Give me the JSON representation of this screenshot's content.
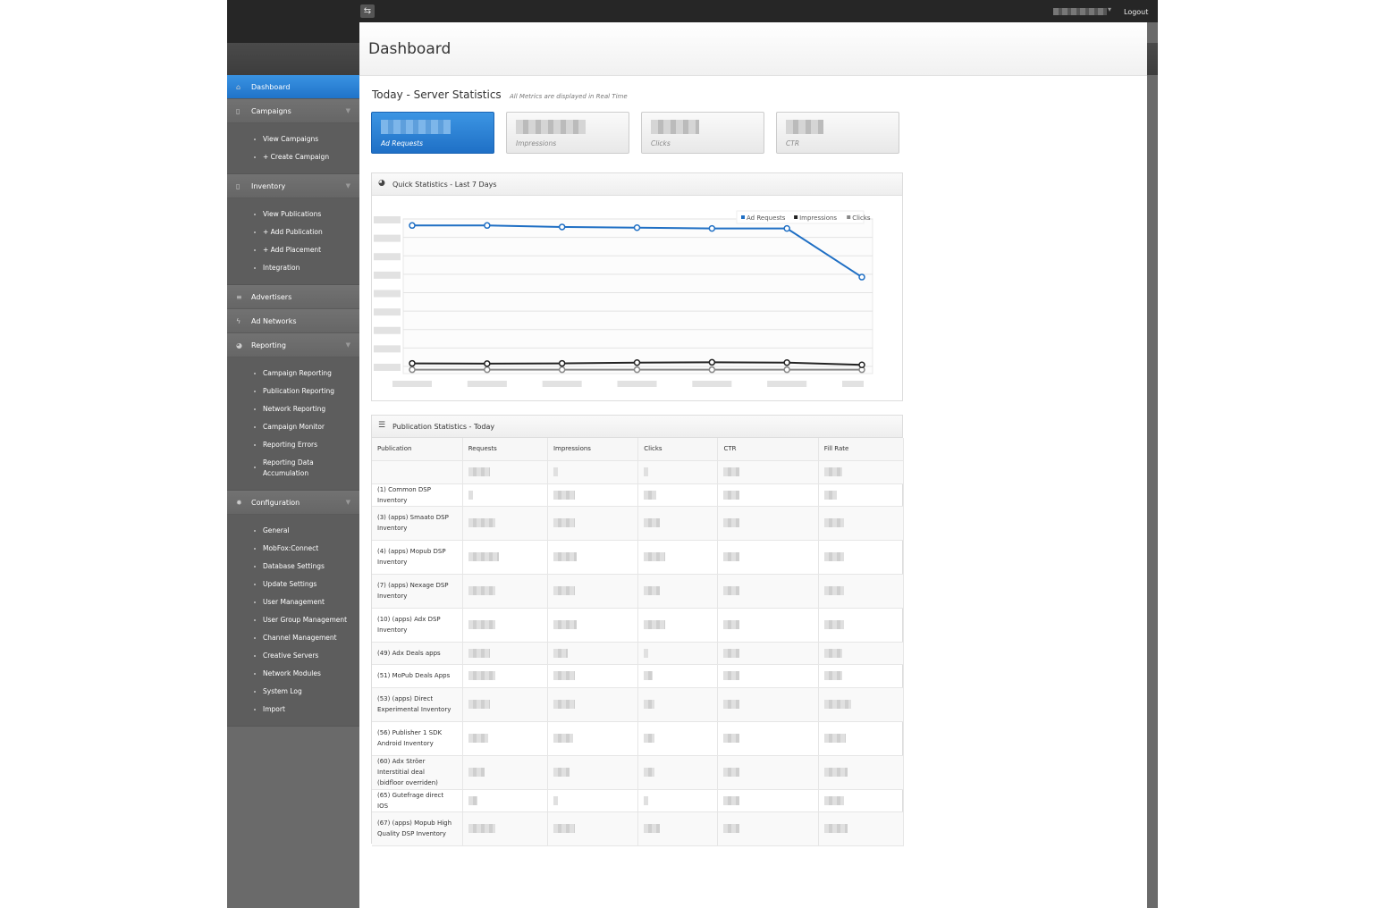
{
  "header": {
    "logout": "Logout",
    "page_title": "Dashboard"
  },
  "sidebar": {
    "dashboard": "Dashboard",
    "campaigns": {
      "label": "Campaigns",
      "items": [
        "View Campaigns",
        "+ Create Campaign"
      ]
    },
    "inventory": {
      "label": "Inventory",
      "items": [
        "View Publications",
        "+ Add Publication",
        "+ Add Placement",
        "Integration"
      ]
    },
    "advertisers": "Advertisers",
    "ad_networks": "Ad Networks",
    "reporting": {
      "label": "Reporting",
      "items": [
        "Campaign Reporting",
        "Publication Reporting",
        "Network Reporting",
        "Campaign Monitor",
        "Reporting Errors",
        "Reporting Data Accumulation"
      ]
    },
    "configuration": {
      "label": "Configuration",
      "items": [
        "General",
        "MobFox:Connect",
        "Database Settings",
        "Update Settings",
        "User Management",
        "User Group Management",
        "Channel Management",
        "Creative Servers",
        "Network Modules",
        "System Log",
        "Import"
      ]
    }
  },
  "server_stats": {
    "title": "Today - Server Statistics",
    "subtitle": "All Metrics are displayed in Real Time",
    "cards": [
      "Ad Requests",
      "Impressions",
      "Clicks",
      "CTR"
    ]
  },
  "quick_stats": {
    "title": "Quick Statistics - Last 7 Days"
  },
  "chart_data": {
    "type": "line",
    "title": "",
    "series": [
      {
        "name": "Ad Requests",
        "color": "#1f6fc4",
        "values": [
          0.98,
          0.98,
          0.97,
          0.965,
          0.96,
          0.96,
          0.63
        ]
      },
      {
        "name": "Impressions",
        "color": "#222222",
        "values": [
          0.045,
          0.043,
          0.045,
          0.05,
          0.052,
          0.05,
          0.035
        ]
      },
      {
        "name": "Clicks",
        "color": "#888888",
        "values": [
          0.002,
          0.002,
          0.002,
          0.002,
          0.002,
          0.002,
          0.002
        ]
      }
    ],
    "ylim": [
      0,
      1
    ],
    "grid": true,
    "legend": "top-right"
  },
  "pub_stats": {
    "title": "Publication Statistics - Today",
    "columns": [
      "Publication",
      "Requests",
      "Impressions",
      "Clicks",
      "CTR",
      "Fill Rate"
    ],
    "rows": [
      "",
      "(1) Common DSP Inventory",
      "(3) (apps) Smaato DSP Inventory",
      "(4) (apps) Mopub DSP Inventory",
      "(7) (apps) Nexage DSP Inventory",
      "(10) (apps) Adx DSP Inventory",
      "(49) Adx Deals apps",
      "(51) MoPub Deals Apps",
      "(53) (apps) Direct Experimental Inventory",
      "(56) Publisher 1 SDK Android Inventory",
      "(60) Adx Ströer Interstitial deal (bidfloor overriden)",
      "(65) Gutefrage direct IOS",
      "(67) (apps) Mopub High Quality DSP Inventory"
    ]
  },
  "icons": {
    "dashboard": "home-icon",
    "campaigns": "document-icon",
    "inventory": "clipboard-icon",
    "advertisers": "layers-icon",
    "ad_networks": "bolt-icon",
    "reporting": "pie-icon",
    "configuration": "gear-icon"
  }
}
